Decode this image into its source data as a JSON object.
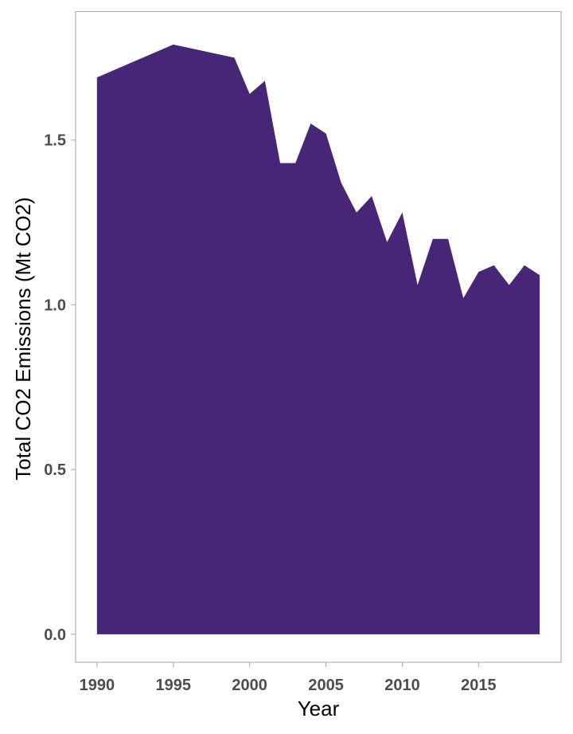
{
  "chart_data": {
    "type": "area",
    "title": "",
    "xlabel": "Year",
    "ylabel": "Total CO2 Emissions (Mt CO2)",
    "x": [
      1990,
      1991,
      1992,
      1993,
      1994,
      1995,
      1996,
      1997,
      1998,
      1999,
      2000,
      2001,
      2002,
      2003,
      2004,
      2005,
      2006,
      2007,
      2008,
      2009,
      2010,
      2011,
      2012,
      2013,
      2014,
      2015,
      2016,
      2017,
      2018,
      2019
    ],
    "values": [
      1.69,
      1.71,
      1.73,
      1.75,
      1.77,
      1.79,
      1.78,
      1.77,
      1.76,
      1.75,
      1.64,
      1.68,
      1.43,
      1.43,
      1.55,
      1.52,
      1.37,
      1.28,
      1.33,
      1.19,
      1.28,
      1.06,
      1.2,
      1.2,
      1.02,
      1.1,
      1.12,
      1.06,
      1.12,
      1.09
    ],
    "xlim": [
      1988.6,
      2020.4
    ],
    "ylim": [
      -0.085,
      1.89
    ],
    "xticks": [
      "1990",
      "1995",
      "2000",
      "2005",
      "2010",
      "2015"
    ],
    "yticks": [
      "0.0",
      "0.5",
      "1.0",
      "1.5"
    ],
    "fill_color": "#482677",
    "panel_border_color": "#b3b3b3",
    "grid": false,
    "legend": "none"
  }
}
